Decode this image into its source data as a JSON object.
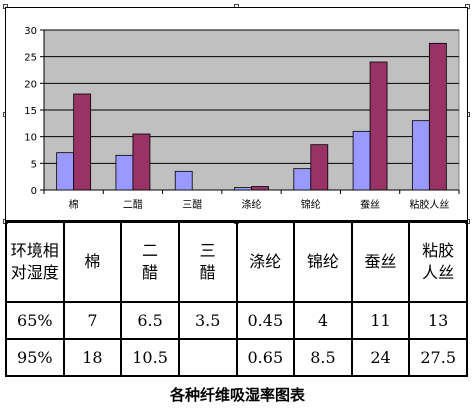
{
  "chart_data": {
    "type": "bar",
    "categories": [
      "棉",
      "二醋",
      "三醋",
      "涤纶",
      "锦纶",
      "蚕丝",
      "粘胶人丝"
    ],
    "series": [
      {
        "name": "65%",
        "values": [
          7,
          6.5,
          3.5,
          0.45,
          4,
          11,
          13
        ]
      },
      {
        "name": "95%",
        "values": [
          18,
          10.5,
          null,
          0.65,
          8.5,
          24,
          27.5
        ]
      }
    ],
    "yticks": [
      "0",
      "5",
      "10",
      "15",
      "20",
      "25",
      "30"
    ],
    "ylim": [
      0,
      30
    ],
    "grid": true,
    "legend": "none",
    "colors": {
      "series1": "#9999ff",
      "series2": "#993366",
      "plot_bg": "#c0c0c0"
    }
  },
  "table": {
    "header": [
      "环境相对湿度",
      "棉",
      "二醋",
      "三醋",
      "涤纶",
      "锦纶",
      "蚕丝",
      "粘胶人丝"
    ],
    "rows": [
      [
        "65%",
        "7",
        "6.5",
        "3.5",
        "0.45",
        "4",
        "11",
        "13"
      ],
      [
        "95%",
        "18",
        "10.5",
        "",
        "0.65",
        "8.5",
        "24",
        "27.5"
      ]
    ]
  },
  "caption": "各种纤维吸湿率图表"
}
